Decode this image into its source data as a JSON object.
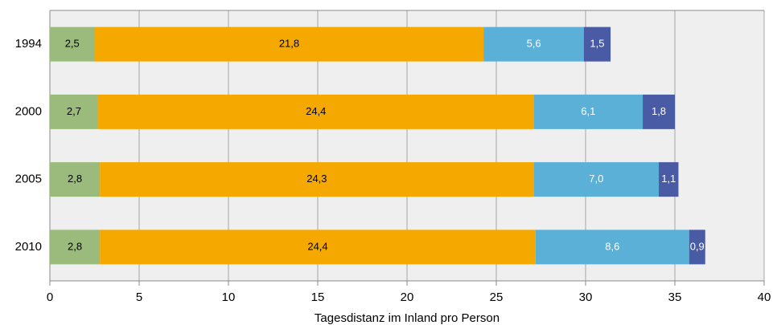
{
  "chart_data": {
    "type": "stacked_barh",
    "xlabel": "Tagesdistanz im Inland pro Person",
    "categories": [
      "1994",
      "2000",
      "2005",
      "2010"
    ],
    "series": [
      {
        "color": "#9bbb7c",
        "label_color": "#000000",
        "values": [
          2.5,
          2.7,
          2.8,
          2.8
        ],
        "value_labels": [
          "2,5",
          "2,7",
          "2,8",
          "2,8"
        ]
      },
      {
        "color": "#f5a800",
        "label_color": "#000000",
        "values": [
          21.8,
          24.4,
          24.3,
          24.4
        ],
        "value_labels": [
          "21,8",
          "24,4",
          "24,3",
          "24,4"
        ]
      },
      {
        "color": "#5bb0d8",
        "label_color": "#ffffff",
        "values": [
          5.6,
          6.1,
          7.0,
          8.6
        ],
        "value_labels": [
          "5,6",
          "6,1",
          "7,0",
          "8,6"
        ]
      },
      {
        "color": "#4a5ba6",
        "label_color": "#ffffff",
        "values": [
          1.5,
          1.8,
          1.1,
          0.9
        ],
        "value_labels": [
          "1,5",
          "1,8",
          "1,1",
          "0,9"
        ]
      }
    ],
    "xlim": [
      0,
      40
    ],
    "xticks": [
      0,
      5,
      10,
      15,
      20,
      25,
      30,
      35,
      40
    ],
    "grid": true
  }
}
